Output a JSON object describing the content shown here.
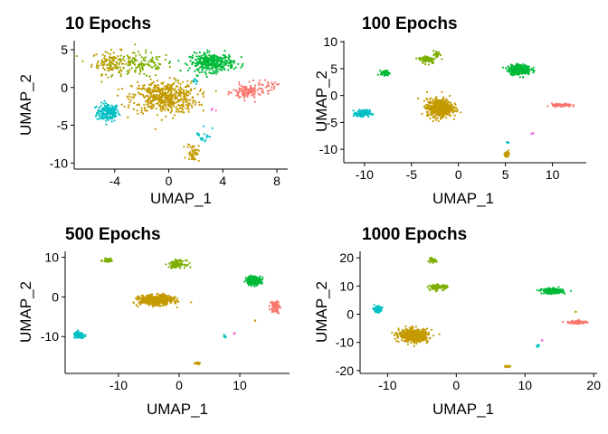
{
  "chart_data": [
    {
      "type": "scatter",
      "title": "10 Epochs",
      "xlabel": "UMAP_1",
      "ylabel": "UMAP_2",
      "xlim": [
        -7,
        8.8
      ],
      "ylim": [
        -10.8,
        6.2
      ],
      "xticks": [
        -4,
        0,
        4,
        8
      ],
      "xtick_labels": [
        "-4",
        "0",
        "4",
        "8"
      ],
      "yticks": [
        -10,
        -5,
        0,
        5
      ],
      "ytick_labels": [
        "-10",
        "-5",
        "0",
        "5"
      ],
      "clusters": [
        {
          "color": "#00bfc4",
          "cx": -4.5,
          "cy": -3.3,
          "sx": 0.55,
          "sy": 0.8,
          "n": 170
        },
        {
          "color": "#b79f00",
          "cx": -4.2,
          "cy": 3.3,
          "sx": 1.0,
          "sy": 1.0,
          "n": 130
        },
        {
          "color": "#7cae00",
          "cx": -2.0,
          "cy": 3.0,
          "sx": 1.5,
          "sy": 1.1,
          "n": 110
        },
        {
          "color": "#c49a00",
          "cx": -0.3,
          "cy": -1.3,
          "sx": 1.6,
          "sy": 1.4,
          "n": 520
        },
        {
          "color": "#00ba38",
          "cx": 3.2,
          "cy": 3.3,
          "sx": 1.1,
          "sy": 0.8,
          "n": 330
        },
        {
          "color": "#f8766d",
          "cx": 5.8,
          "cy": -0.6,
          "sx": 0.7,
          "sy": 0.7,
          "n": 110
        },
        {
          "color": "#f8766d",
          "cx": 7.3,
          "cy": 0.2,
          "sx": 0.5,
          "sy": 0.4,
          "n": 25
        },
        {
          "color": "#c49a00",
          "cx": 1.8,
          "cy": -8.6,
          "sx": 0.3,
          "sy": 0.8,
          "n": 45
        },
        {
          "color": "#00bfc4",
          "cx": 2.6,
          "cy": -6.2,
          "sx": 0.4,
          "sy": 0.9,
          "n": 18
        },
        {
          "color": "#00bfc4",
          "cx": 2.0,
          "cy": 0.8,
          "sx": 0.3,
          "sy": 0.3,
          "n": 8
        },
        {
          "color": "#f564e3",
          "cx": 3.3,
          "cy": -3.0,
          "sx": 0.2,
          "sy": 0.2,
          "n": 3
        }
      ]
    },
    {
      "type": "scatter",
      "title": "100 Epochs",
      "xlabel": "UMAP_1",
      "ylabel": "UMAP_2",
      "xlim": [
        -12.2,
        13.6
      ],
      "ylim": [
        -12.5,
        10.2
      ],
      "xticks": [
        -10,
        -5,
        0,
        5,
        10
      ],
      "xtick_labels": [
        "-10",
        "-5",
        "0",
        "5",
        "10"
      ],
      "yticks": [
        -10,
        -5,
        0,
        5,
        10
      ],
      "ytick_labels": [
        "-10",
        "-5",
        "0",
        "5",
        "10"
      ],
      "clusters": [
        {
          "color": "#00bfc4",
          "cx": -10.2,
          "cy": -3.3,
          "sx": 0.5,
          "sy": 0.4,
          "n": 150
        },
        {
          "color": "#00ba38",
          "cx": -7.8,
          "cy": 4.2,
          "sx": 0.3,
          "sy": 0.3,
          "n": 60
        },
        {
          "color": "#7cae00",
          "cx": -3.3,
          "cy": 6.7,
          "sx": 0.6,
          "sy": 0.5,
          "n": 80
        },
        {
          "color": "#7cae00",
          "cx": -2.3,
          "cy": 7.6,
          "sx": 0.25,
          "sy": 0.5,
          "n": 30
        },
        {
          "color": "#c49a00",
          "cx": -2.0,
          "cy": -2.3,
          "sx": 0.9,
          "sy": 1.1,
          "n": 600
        },
        {
          "color": "#00ba38",
          "cx": 6.5,
          "cy": 4.8,
          "sx": 0.8,
          "sy": 0.6,
          "n": 300
        },
        {
          "color": "#f8766d",
          "cx": 11.0,
          "cy": -1.8,
          "sx": 0.7,
          "sy": 0.2,
          "n": 90
        },
        {
          "color": "#c49a00",
          "cx": 5.2,
          "cy": -10.8,
          "sx": 0.2,
          "sy": 0.3,
          "n": 30
        },
        {
          "color": "#00bfc4",
          "cx": 5.3,
          "cy": -8.8,
          "sx": 0.15,
          "sy": 0.2,
          "n": 6
        },
        {
          "color": "#f564e3",
          "cx": 7.9,
          "cy": -7.1,
          "sx": 0.1,
          "sy": 0.1,
          "n": 3
        }
      ]
    },
    {
      "type": "scatter",
      "title": "500 Epochs",
      "xlabel": "UMAP_1",
      "ylabel": "UMAP_2",
      "xlim": [
        -18.8,
        18.2
      ],
      "ylim": [
        -19.3,
        11.5
      ],
      "xticks": [
        -10,
        0,
        10
      ],
      "xtick_labels": [
        "-10",
        "0",
        "10"
      ],
      "yticks": [
        -10,
        0,
        10
      ],
      "ytick_labels": [
        "-10",
        "0",
        "10"
      ],
      "clusters": [
        {
          "color": "#00bfc4",
          "cx": -16.5,
          "cy": -9.7,
          "sx": 0.6,
          "sy": 0.5,
          "n": 130
        },
        {
          "color": "#7cae00",
          "cx": -11.8,
          "cy": 9.3,
          "sx": 0.5,
          "sy": 0.3,
          "n": 50
        },
        {
          "color": "#7cae00",
          "cx": -0.3,
          "cy": 8.3,
          "sx": 0.9,
          "sy": 0.6,
          "n": 100
        },
        {
          "color": "#c49a00",
          "cx": -3.8,
          "cy": -0.8,
          "sx": 1.8,
          "sy": 0.8,
          "n": 560
        },
        {
          "color": "#00ba38",
          "cx": 12.3,
          "cy": 4.2,
          "sx": 0.8,
          "sy": 0.7,
          "n": 250
        },
        {
          "color": "#f8766d",
          "cx": 15.8,
          "cy": -2.5,
          "sx": 0.5,
          "sy": 1.0,
          "n": 80
        },
        {
          "color": "#c49a00",
          "cx": 3.0,
          "cy": -16.7,
          "sx": 0.3,
          "sy": 0.2,
          "n": 25
        },
        {
          "color": "#00bfc4",
          "cx": 7.6,
          "cy": -10.0,
          "sx": 0.2,
          "sy": 0.2,
          "n": 5
        },
        {
          "color": "#f564e3",
          "cx": 9.1,
          "cy": -9.2,
          "sx": 0.1,
          "sy": 0.1,
          "n": 3
        },
        {
          "color": "#c49a00",
          "cx": 12.5,
          "cy": -6.0,
          "sx": 0.1,
          "sy": 0.1,
          "n": 2
        }
      ]
    },
    {
      "type": "scatter",
      "title": "1000 Epochs",
      "xlabel": "UMAP_1",
      "ylabel": "UMAP_2",
      "xlim": [
        -14,
        20.5
      ],
      "ylim": [
        -21,
        22.3
      ],
      "xticks": [
        -10,
        0,
        10,
        20
      ],
      "xtick_labels": [
        "-10",
        "0",
        "10",
        "20"
      ],
      "yticks": [
        -20,
        -10,
        0,
        10,
        20
      ],
      "ytick_labels": [
        "-20",
        "-10",
        "0",
        "10",
        "20"
      ],
      "clusters": [
        {
          "color": "#00bfc4",
          "cx": -11.5,
          "cy": 1.8,
          "sx": 0.4,
          "sy": 0.7,
          "n": 100
        },
        {
          "color": "#7cae00",
          "cx": -3.5,
          "cy": 19.0,
          "sx": 0.4,
          "sy": 0.5,
          "n": 40
        },
        {
          "color": "#7cae00",
          "cx": -2.7,
          "cy": 9.6,
          "sx": 0.9,
          "sy": 0.6,
          "n": 90
        },
        {
          "color": "#c49a00",
          "cx": -6.2,
          "cy": -7.5,
          "sx": 1.4,
          "sy": 1.5,
          "n": 520
        },
        {
          "color": "#00ba38",
          "cx": 14.0,
          "cy": 8.2,
          "sx": 1.0,
          "sy": 0.6,
          "n": 250
        },
        {
          "color": "#f8766d",
          "cx": 17.6,
          "cy": -2.8,
          "sx": 0.9,
          "sy": 0.4,
          "n": 80
        },
        {
          "color": "#c49a00",
          "cx": 7.5,
          "cy": -18.5,
          "sx": 0.3,
          "sy": 0.2,
          "n": 20
        },
        {
          "color": "#00bfc4",
          "cx": 11.8,
          "cy": -11.0,
          "sx": 0.2,
          "sy": 0.5,
          "n": 6
        },
        {
          "color": "#f564e3",
          "cx": 12.5,
          "cy": -9.3,
          "sx": 0.1,
          "sy": 0.1,
          "n": 3
        },
        {
          "color": "#b79f00",
          "cx": 17.4,
          "cy": 0.8,
          "sx": 0.1,
          "sy": 0.1,
          "n": 2
        }
      ]
    }
  ]
}
